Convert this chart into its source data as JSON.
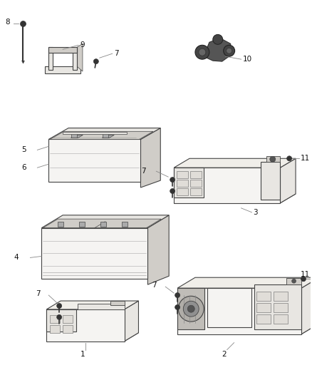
{
  "background_color": "#ffffff",
  "fig_width": 4.38,
  "fig_height": 5.33,
  "dpi": 100,
  "line_color": "#444444",
  "light_fill": "#f5f4f2",
  "mid_fill": "#e8e6e2",
  "dark_fill": "#d0cdc8",
  "lw_main": 0.8,
  "lw_thin": 0.4
}
